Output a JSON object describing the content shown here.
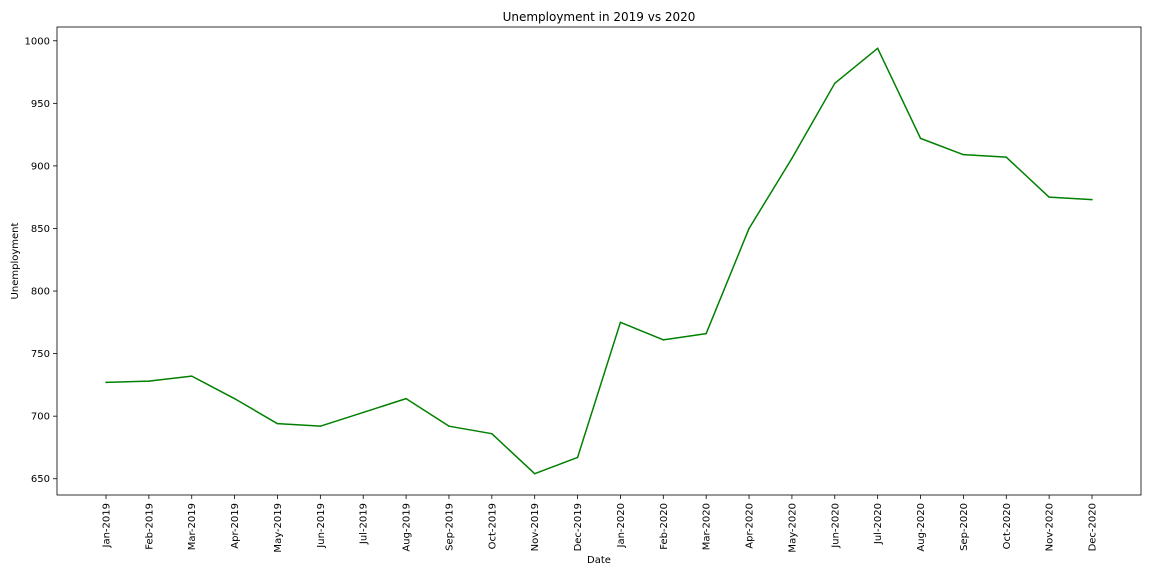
{
  "chart_data": {
    "type": "line",
    "title": "Unemployment in 2019 vs 2020",
    "xlabel": "Date",
    "ylabel": "Unemployment",
    "ylim": [
      637,
      1011
    ],
    "yticks": [
      650,
      700,
      750,
      800,
      850,
      900,
      950,
      1000
    ],
    "grid": false,
    "line_color": "#008000",
    "categories": [
      "Jan-2019",
      "Feb-2019",
      "Mar-2019",
      "Apr-2019",
      "May-2019",
      "Jun-2019",
      "Jul-2019",
      "Aug-2019",
      "Sep-2019",
      "Oct-2019",
      "Nov-2019",
      "Dec-2019",
      "Jan-2020",
      "Feb-2020",
      "Mar-2020",
      "Apr-2020",
      "May-2020",
      "Jun-2020",
      "Jul-2020",
      "Aug-2020",
      "Sep-2020",
      "Oct-2020",
      "Nov-2020",
      "Dec-2020"
    ],
    "values": [
      727,
      728,
      732,
      714,
      694,
      692,
      703,
      714,
      692,
      686,
      654,
      667,
      775,
      761,
      766,
      850,
      906,
      966,
      994,
      922,
      909,
      907,
      875,
      873
    ]
  }
}
